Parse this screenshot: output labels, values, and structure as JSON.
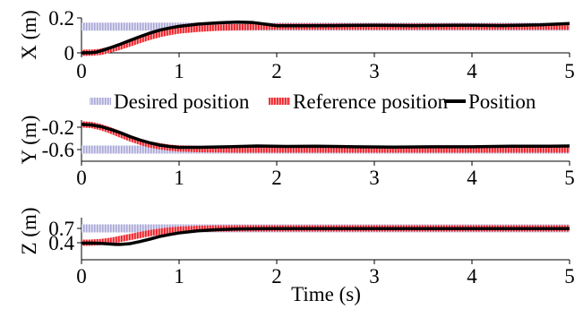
{
  "chart_data": [
    {
      "type": "line",
      "ylabel": "X (m)",
      "xlim": [
        0,
        5
      ],
      "ylim": [
        0,
        0.2
      ],
      "yticks": [
        "0",
        "0.2"
      ],
      "xticks": [
        "0",
        "1",
        "2",
        "3",
        "4",
        "5"
      ],
      "series": [
        {
          "name": "Desired position",
          "x": [
            0,
            1,
            5
          ],
          "y": [
            0.15,
            0.15,
            0.15
          ]
        },
        {
          "name": "Reference position",
          "x": [
            0,
            0.1,
            0.2,
            0.3,
            0.4,
            0.5,
            0.6,
            0.7,
            0.8,
            0.9,
            1.0,
            1.2,
            1.4,
            1.6,
            1.8,
            2.0,
            3.0,
            4.0,
            5.0
          ],
          "y": [
            0.0,
            0.001,
            0.006,
            0.02,
            0.036,
            0.055,
            0.074,
            0.092,
            0.107,
            0.119,
            0.128,
            0.138,
            0.144,
            0.147,
            0.149,
            0.15,
            0.15,
            0.15,
            0.15
          ]
        },
        {
          "name": "Position",
          "x": [
            0,
            0.1,
            0.15,
            0.2,
            0.3,
            0.4,
            0.5,
            0.6,
            0.7,
            0.8,
            0.9,
            1.0,
            1.2,
            1.4,
            1.6,
            1.75,
            1.9,
            2.0,
            2.3,
            2.6,
            3.0,
            3.4,
            3.7,
            4.0,
            4.3,
            4.7,
            5.0
          ],
          "y": [
            0.0,
            0.001,
            0.004,
            0.012,
            0.03,
            0.05,
            0.072,
            0.093,
            0.113,
            0.13,
            0.142,
            0.152,
            0.165,
            0.172,
            0.176,
            0.174,
            0.163,
            0.155,
            0.155,
            0.156,
            0.158,
            0.156,
            0.157,
            0.158,
            0.156,
            0.16,
            0.168
          ]
        }
      ]
    },
    {
      "type": "line",
      "ylabel": "Y (m)",
      "xlim": [
        0,
        5
      ],
      "ylim": [
        -0.7,
        -0.1
      ],
      "yticks": [
        "-0.2",
        "-0.6"
      ],
      "xticks": [
        "0",
        "1",
        "2",
        "3",
        "4",
        "5"
      ],
      "legend": {
        "placement": "top",
        "entries": [
          "Desired position",
          "Reference position",
          "Position"
        ]
      },
      "series": [
        {
          "name": "Desired position",
          "x": [
            0,
            1,
            5
          ],
          "y": [
            -0.6,
            -0.6,
            -0.6
          ]
        },
        {
          "name": "Reference position",
          "x": [
            0,
            0.1,
            0.2,
            0.3,
            0.4,
            0.5,
            0.6,
            0.7,
            0.8,
            0.9,
            1.0,
            1.2,
            1.4,
            1.6,
            2.0,
            3.0,
            4.0,
            5.0
          ],
          "y": [
            -0.15,
            -0.16,
            -0.2,
            -0.26,
            -0.33,
            -0.4,
            -0.46,
            -0.51,
            -0.54,
            -0.565,
            -0.58,
            -0.592,
            -0.597,
            -0.6,
            -0.6,
            -0.6,
            -0.6,
            -0.6
          ]
        },
        {
          "name": "Position",
          "x": [
            0,
            0.1,
            0.2,
            0.3,
            0.4,
            0.5,
            0.6,
            0.7,
            0.8,
            0.9,
            1.0,
            1.2,
            1.5,
            1.8,
            2.1,
            2.4,
            2.8,
            3.2,
            3.6,
            4.0,
            4.4,
            4.8,
            5.0
          ],
          "y": [
            -0.15,
            -0.16,
            -0.19,
            -0.24,
            -0.3,
            -0.37,
            -0.43,
            -0.48,
            -0.52,
            -0.545,
            -0.56,
            -0.56,
            -0.55,
            -0.535,
            -0.545,
            -0.54,
            -0.55,
            -0.555,
            -0.55,
            -0.55,
            -0.54,
            -0.54,
            -0.535
          ]
        }
      ]
    },
    {
      "type": "line",
      "ylabel": "Z (m)",
      "xlim": [
        0,
        5
      ],
      "ylim": [
        0.32,
        0.75
      ],
      "yticks": [
        "0.7",
        "0.4"
      ],
      "xticks": [
        "0",
        "1",
        "2",
        "3",
        "4",
        "5"
      ],
      "xlabel": "Time (s)",
      "series": [
        {
          "name": "Desired position",
          "x": [
            0,
            1,
            5
          ],
          "y": [
            0.7,
            0.7,
            0.7
          ]
        },
        {
          "name": "Reference position",
          "x": [
            0,
            0.1,
            0.2,
            0.3,
            0.4,
            0.5,
            0.6,
            0.7,
            0.8,
            0.9,
            1.0,
            1.2,
            1.4,
            1.6,
            2.0,
            3.0,
            4.0,
            5.0
          ],
          "y": [
            0.4,
            0.402,
            0.415,
            0.44,
            0.48,
            0.52,
            0.56,
            0.6,
            0.63,
            0.655,
            0.673,
            0.69,
            0.697,
            0.7,
            0.7,
            0.7,
            0.7,
            0.7
          ]
        },
        {
          "name": "Position",
          "x": [
            0,
            0.1,
            0.2,
            0.3,
            0.35,
            0.4,
            0.5,
            0.6,
            0.7,
            0.8,
            0.9,
            1.0,
            1.2,
            1.4,
            1.6,
            1.8,
            2.0,
            3.0,
            4.0,
            5.0
          ],
          "y": [
            0.39,
            0.392,
            0.385,
            0.372,
            0.365,
            0.365,
            0.382,
            0.425,
            0.475,
            0.53,
            0.57,
            0.605,
            0.65,
            0.675,
            0.688,
            0.693,
            0.695,
            0.695,
            0.695,
            0.695
          ]
        }
      ]
    }
  ]
}
